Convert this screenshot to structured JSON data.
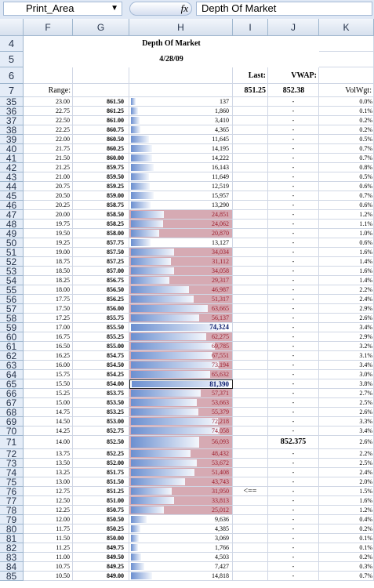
{
  "toolbar": {
    "name_box": "Print_Area",
    "fx": "fx",
    "formula": "Depth Of Market"
  },
  "columns": [
    "F",
    "G",
    "H",
    "I",
    "J",
    "K"
  ],
  "header_rows": [
    4,
    5,
    6,
    7
  ],
  "header": {
    "title": "Depth Of Market",
    "date": "4/28/09",
    "last_label": "Last:",
    "vwap_label": "VWAP:",
    "range_label": "Range:",
    "last": "851.25",
    "vwap": "852.38",
    "volwgt_label": "VolWgt:"
  },
  "rows": [
    {
      "row": 35,
      "range": "23.00",
      "price": "861.50",
      "volume": 137,
      "volume_label": "137",
      "j": "-",
      "volwgt": "0.0%"
    },
    {
      "row": 36,
      "range": "22.75",
      "price": "861.25",
      "volume": 1860,
      "volume_label": "1,860",
      "j": "-",
      "volwgt": "0.1%"
    },
    {
      "row": 37,
      "range": "22.50",
      "price": "861.00",
      "volume": 3410,
      "volume_label": "3,410",
      "j": "-",
      "volwgt": "0.2%"
    },
    {
      "row": 38,
      "range": "22.25",
      "price": "860.75",
      "volume": 4365,
      "volume_label": "4,365",
      "j": "-",
      "volwgt": "0.2%"
    },
    {
      "row": 39,
      "range": "22.00",
      "price": "860.50",
      "volume": 11645,
      "volume_label": "11,645",
      "j": "-",
      "volwgt": "0.5%"
    },
    {
      "row": 40,
      "range": "21.75",
      "price": "860.25",
      "volume": 14195,
      "volume_label": "14,195",
      "j": "-",
      "volwgt": "0.7%"
    },
    {
      "row": 41,
      "range": "21.50",
      "price": "860.00",
      "volume": 14222,
      "volume_label": "14,222",
      "j": "-",
      "volwgt": "0.7%"
    },
    {
      "row": 42,
      "range": "21.25",
      "price": "859.75",
      "volume": 16143,
      "volume_label": "16,143",
      "j": "-",
      "volwgt": "0.8%"
    },
    {
      "row": 43,
      "range": "21.00",
      "price": "859.50",
      "volume": 11649,
      "volume_label": "11,649",
      "j": "-",
      "volwgt": "0.5%"
    },
    {
      "row": 44,
      "range": "20.75",
      "price": "859.25",
      "volume": 12519,
      "volume_label": "12,519",
      "j": "-",
      "volwgt": "0.6%"
    },
    {
      "row": 45,
      "range": "20.50",
      "price": "859.00",
      "volume": 15957,
      "volume_label": "15,957",
      "j": "-",
      "volwgt": "0.7%"
    },
    {
      "row": 46,
      "range": "20.25",
      "price": "858.75",
      "volume": 13290,
      "volume_label": "13,290",
      "j": "-",
      "volwgt": "0.6%"
    },
    {
      "row": 47,
      "range": "20.00",
      "price": "858.50",
      "volume": 24851,
      "volume_label": "24,851",
      "j": "-",
      "volwgt": "1.2%",
      "cell": "red"
    },
    {
      "row": 48,
      "range": "19.75",
      "price": "858.25",
      "volume": 24062,
      "volume_label": "24,062",
      "j": "-",
      "volwgt": "1.1%",
      "cell": "red"
    },
    {
      "row": 49,
      "range": "19.50",
      "price": "858.00",
      "volume": 20870,
      "volume_label": "20,870",
      "j": "-",
      "volwgt": "1.0%",
      "cell": "red"
    },
    {
      "row": 50,
      "range": "19.25",
      "price": "857.75",
      "volume": 13127,
      "volume_label": "13,127",
      "j": "-",
      "volwgt": "0.6%"
    },
    {
      "row": 51,
      "range": "19.00",
      "price": "857.50",
      "volume": 34034,
      "volume_label": "34,034",
      "j": "-",
      "volwgt": "1.6%",
      "cell": "red"
    },
    {
      "row": 52,
      "range": "18.75",
      "price": "857.25",
      "volume": 31112,
      "volume_label": "31,112",
      "j": "-",
      "volwgt": "1.4%",
      "cell": "red"
    },
    {
      "row": 53,
      "range": "18.50",
      "price": "857.00",
      "volume": 34058,
      "volume_label": "34,058",
      "j": "-",
      "volwgt": "1.6%",
      "cell": "red"
    },
    {
      "row": 54,
      "range": "18.25",
      "price": "856.75",
      "volume": 29317,
      "volume_label": "29,317",
      "j": "-",
      "volwgt": "1.4%",
      "cell": "red"
    },
    {
      "row": 55,
      "range": "18.00",
      "price": "856.50",
      "volume": 46987,
      "volume_label": "46,987",
      "j": "-",
      "volwgt": "2.2%",
      "cell": "red"
    },
    {
      "row": 56,
      "range": "17.75",
      "price": "856.25",
      "volume": 51317,
      "volume_label": "51,317",
      "j": "-",
      "volwgt": "2.4%",
      "cell": "red"
    },
    {
      "row": 57,
      "range": "17.50",
      "price": "856.00",
      "volume": 63665,
      "volume_label": "63,665",
      "j": "-",
      "volwgt": "2.9%",
      "cell": "red"
    },
    {
      "row": 58,
      "range": "17.25",
      "price": "855.75",
      "volume": 56137,
      "volume_label": "56,137",
      "j": "-",
      "volwgt": "2.6%",
      "cell": "red"
    },
    {
      "row": 59,
      "range": "17.00",
      "price": "855.50",
      "volume": 74324,
      "volume_label": "74,324",
      "j": "-",
      "volwgt": "3.4%",
      "cell": "blue"
    },
    {
      "row": 60,
      "range": "16.75",
      "price": "855.25",
      "volume": 62275,
      "volume_label": "62,275",
      "j": "-",
      "volwgt": "2.9%",
      "cell": "red"
    },
    {
      "row": 61,
      "range": "16.50",
      "price": "855.00",
      "volume": 69785,
      "volume_label": "69,785",
      "j": "-",
      "volwgt": "3.2%",
      "cell": "red"
    },
    {
      "row": 62,
      "range": "16.25",
      "price": "854.75",
      "volume": 67551,
      "volume_label": "67,551",
      "j": "-",
      "volwgt": "3.1%",
      "cell": "red"
    },
    {
      "row": 63,
      "range": "16.00",
      "price": "854.50",
      "volume": 73194,
      "volume_label": "73,194",
      "j": "-",
      "volwgt": "3.4%",
      "cell": "red"
    },
    {
      "row": 64,
      "range": "15.75",
      "price": "854.25",
      "volume": 65632,
      "volume_label": "65,632",
      "j": "-",
      "volwgt": "3.0%",
      "cell": "red"
    },
    {
      "row": 65,
      "range": "15.50",
      "price": "854.00",
      "volume": 81390,
      "volume_label": "81,390",
      "j": "-",
      "volwgt": "3.8%",
      "cell": "selected"
    },
    {
      "row": 66,
      "range": "15.25",
      "price": "853.75",
      "volume": 57371,
      "volume_label": "57,371",
      "j": "-",
      "volwgt": "2.7%",
      "cell": "red"
    },
    {
      "row": 67,
      "range": "15.00",
      "price": "853.50",
      "volume": 53663,
      "volume_label": "53,663",
      "j": "-",
      "volwgt": "2.5%",
      "cell": "red"
    },
    {
      "row": 68,
      "range": "14.75",
      "price": "853.25",
      "volume": 55379,
      "volume_label": "55,379",
      "j": "-",
      "volwgt": "2.6%",
      "cell": "red"
    },
    {
      "row": 69,
      "range": "14.50",
      "price": "853.00",
      "volume": 72218,
      "volume_label": "72,218",
      "j": "-",
      "volwgt": "3.3%",
      "cell": "red"
    },
    {
      "row": 70,
      "range": "14.25",
      "price": "852.75",
      "volume": 74058,
      "volume_label": "74,058",
      "j": "-",
      "volwgt": "3.4%",
      "cell": "red"
    },
    {
      "row": 71,
      "range": "14.00",
      "price": "852.50",
      "volume": 56093,
      "volume_label": "56,093",
      "j": "852.375",
      "volwgt": "2.6%",
      "cell": "red"
    },
    {
      "row": 72,
      "range": "13.75",
      "price": "852.25",
      "volume": 48432,
      "volume_label": "48,432",
      "j": "-",
      "volwgt": "2.2%",
      "cell": "red"
    },
    {
      "row": 73,
      "range": "13.50",
      "price": "852.00",
      "volume": 53672,
      "volume_label": "53,672",
      "j": "-",
      "volwgt": "2.5%",
      "cell": "red"
    },
    {
      "row": 74,
      "range": "13.25",
      "price": "851.75",
      "volume": 51408,
      "volume_label": "51,408",
      "j": "-",
      "volwgt": "2.4%",
      "cell": "red"
    },
    {
      "row": 75,
      "range": "13.00",
      "price": "851.50",
      "volume": 43743,
      "volume_label": "43,743",
      "j": "-",
      "volwgt": "2.0%",
      "cell": "red"
    },
    {
      "row": 76,
      "range": "12.75",
      "price": "851.25",
      "volume": 31950,
      "volume_label": "31,950",
      "i": "<==",
      "j": "-",
      "volwgt": "1.5%",
      "cell": "red"
    },
    {
      "row": 77,
      "range": "12.50",
      "price": "851.00",
      "volume": 33813,
      "volume_label": "33,813",
      "j": "-",
      "volwgt": "1.6%",
      "cell": "red"
    },
    {
      "row": 78,
      "range": "12.25",
      "price": "850.75",
      "volume": 25012,
      "volume_label": "25,012",
      "j": "-",
      "volwgt": "1.2%",
      "cell": "red"
    },
    {
      "row": 79,
      "range": "12.00",
      "price": "850.50",
      "volume": 9636,
      "volume_label": "9,636",
      "j": "-",
      "volwgt": "0.4%"
    },
    {
      "row": 80,
      "range": "11.75",
      "price": "850.25",
      "volume": 4385,
      "volume_label": "4,385",
      "j": "-",
      "volwgt": "0.2%"
    },
    {
      "row": 81,
      "range": "11.50",
      "price": "850.00",
      "volume": 3069,
      "volume_label": "3,069",
      "j": "-",
      "volwgt": "0.1%"
    },
    {
      "row": 82,
      "range": "11.25",
      "price": "849.75",
      "volume": 1766,
      "volume_label": "1,766",
      "j": "-",
      "volwgt": "0.1%"
    },
    {
      "row": 83,
      "range": "11.00",
      "price": "849.50",
      "volume": 4503,
      "volume_label": "4,503",
      "j": "-",
      "volwgt": "0.2%"
    },
    {
      "row": 84,
      "range": "10.75",
      "price": "849.25",
      "volume": 7427,
      "volume_label": "7,427",
      "j": "-",
      "volwgt": "0.3%"
    },
    {
      "row": 85,
      "range": "10.50",
      "price": "849.00",
      "volume": 14818,
      "volume_label": "14,818",
      "j": "-",
      "volwgt": "0.7%"
    }
  ]
}
